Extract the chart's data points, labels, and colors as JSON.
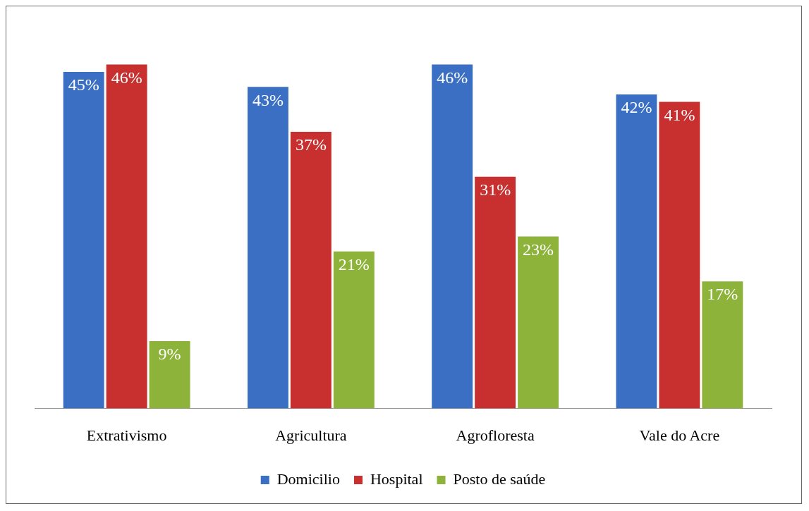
{
  "chart_data": {
    "type": "bar",
    "categories": [
      "Extrativismo",
      "Agricultura",
      "Agrofloresta",
      "Vale do Acre"
    ],
    "series": [
      {
        "name": "Domicilio",
        "color": "#3a6fc4",
        "values": [
          45,
          43,
          46,
          42
        ],
        "value_labels": [
          "45%",
          "43%",
          "46%",
          "42%"
        ]
      },
      {
        "name": "Hospital",
        "color": "#c8302f",
        "values": [
          46,
          37,
          31,
          41
        ],
        "value_labels": [
          "46%",
          "37%",
          "31%",
          "41%"
        ]
      },
      {
        "name": "Posto de saúde",
        "color": "#8db33a",
        "values": [
          9,
          21,
          23,
          17
        ],
        "value_labels": [
          "9%",
          "21%",
          "23%",
          "17%"
        ]
      }
    ],
    "legend": "bottom",
    "grid": false
  }
}
